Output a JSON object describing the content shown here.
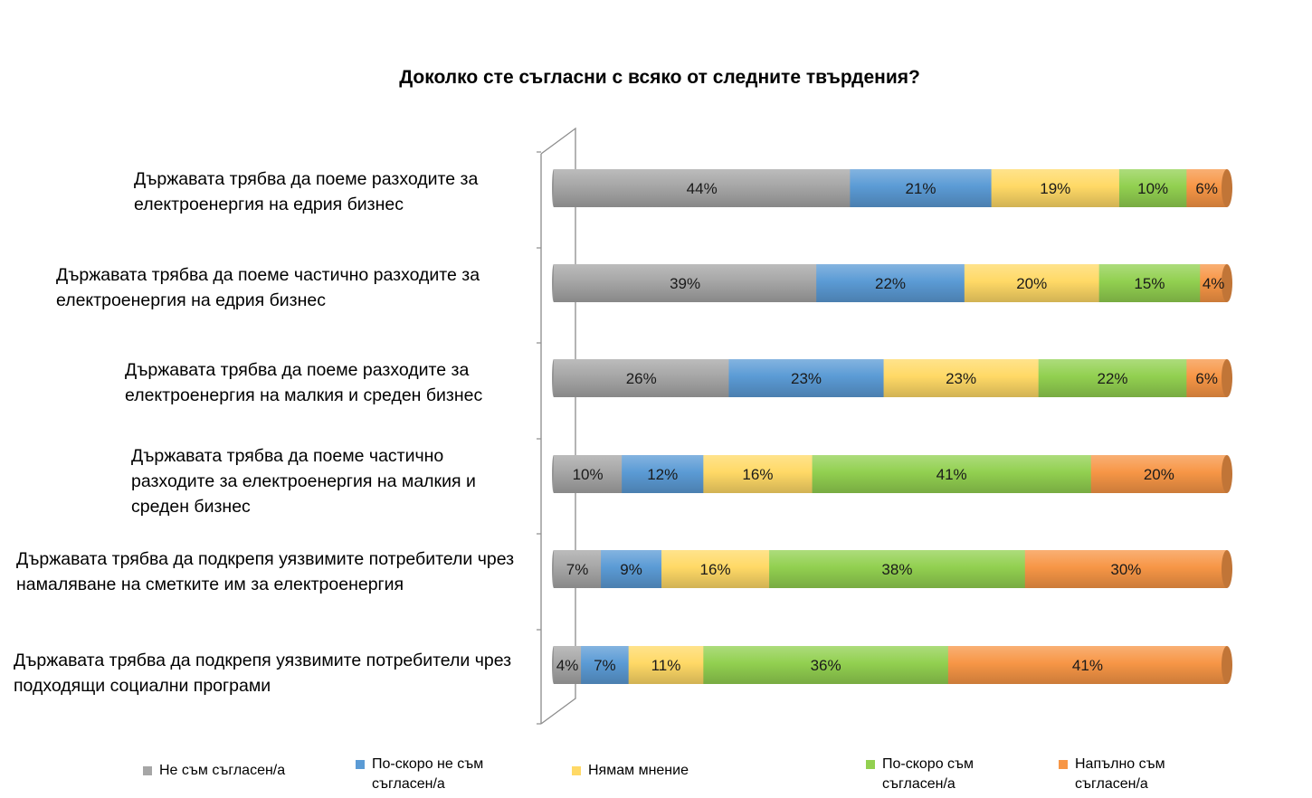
{
  "chart_data": {
    "type": "bar",
    "orientation": "horizontal",
    "stacked": true,
    "percent_stacked": true,
    "title": "Доколко сте съгласни с всяко от следните твърдения?",
    "categories": [
      "Държавата трябва да поеме разходите за електроенергия на едрия бизнес",
      "Държавата трябва да поеме частично разходите за електроенергия на едрия бизнес",
      "Държавата трябва да поеме разходите за електроенергия на малкия и среден бизнес",
      "Държавата трябва да поеме частично разходите за електроенергия на малкия и среден бизнес",
      "Държавата трябва да подкрепя уязвимите потребители чрез намаляване на сметките им за електроенергия",
      "Държавата трябва да подкрепя уязвимите потребители чрез подходящи социални програми"
    ],
    "series": [
      {
        "name": "Не съм съгласен/а",
        "color": "#a6a6a6",
        "values": [
          44,
          39,
          26,
          10,
          7,
          4
        ]
      },
      {
        "name": "По-скоро не съм съгласен/а",
        "color": "#5b9bd5",
        "values": [
          21,
          22,
          23,
          12,
          9,
          7
        ]
      },
      {
        "name": "Нямам мнение",
        "color": "#ffd966",
        "values": [
          19,
          20,
          23,
          16,
          16,
          11
        ]
      },
      {
        "name": "По-скоро съм съгласен/а",
        "color": "#92d050",
        "values": [
          10,
          15,
          22,
          41,
          38,
          36
        ]
      },
      {
        "name": "Напълно съм съгласен/а",
        "color": "#f79646",
        "values": [
          6,
          4,
          6,
          20,
          30,
          41
        ]
      }
    ],
    "value_suffix": "%",
    "legend_position": "bottom",
    "grid": false
  }
}
